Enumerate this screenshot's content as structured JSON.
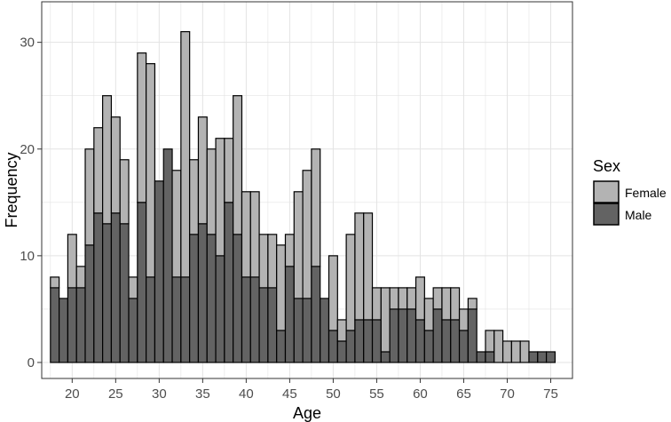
{
  "chart_data": {
    "type": "bar",
    "stacked": true,
    "xlabel": "Age",
    "ylabel": "Frequency",
    "xlim": [
      16.5,
      77.5
    ],
    "ylim": [
      -1.5,
      33.8
    ],
    "x_ticks": [
      20,
      25,
      30,
      35,
      40,
      45,
      50,
      55,
      60,
      65,
      70,
      75
    ],
    "y_ticks": [
      0,
      10,
      20,
      30
    ],
    "grid": true,
    "legend": {
      "title": "Sex",
      "position": "right",
      "entries": [
        {
          "name": "Female",
          "color": "#b3b3b3"
        },
        {
          "name": "Male",
          "color": "#636363"
        }
      ]
    },
    "x": [
      18,
      19,
      20,
      21,
      22,
      23,
      24,
      25,
      26,
      27,
      28,
      29,
      30,
      31,
      32,
      33,
      34,
      35,
      36,
      37,
      38,
      39,
      40,
      41,
      42,
      43,
      44,
      45,
      46,
      47,
      48,
      49,
      50,
      51,
      52,
      53,
      54,
      55,
      56,
      57,
      58,
      59,
      60,
      61,
      62,
      63,
      64,
      65,
      66,
      67,
      68,
      69,
      70,
      71,
      72,
      73,
      74,
      75
    ],
    "series": [
      {
        "name": "Male",
        "values": [
          7,
          6,
          7,
          7,
          11,
          14,
          13,
          14,
          13,
          6,
          15,
          8,
          17,
          20,
          8,
          8,
          12,
          13,
          12,
          10,
          15,
          12,
          8,
          8,
          7,
          7,
          3,
          9,
          6,
          6,
          9,
          6,
          3,
          2,
          3,
          4,
          4,
          4,
          1,
          5,
          5,
          5,
          4,
          3,
          5,
          4,
          4,
          3,
          5,
          1,
          1,
          0,
          0,
          0,
          0,
          1,
          1,
          1
        ]
      },
      {
        "name": "Female",
        "values": [
          1,
          0,
          5,
          2,
          9,
          8,
          12,
          9,
          6,
          2,
          14,
          20,
          0,
          0,
          10,
          23,
          7,
          10,
          8,
          11,
          6,
          13,
          8,
          8,
          5,
          5,
          8,
          3,
          10,
          12,
          11,
          0,
          7,
          2,
          9,
          10,
          10,
          3,
          6,
          2,
          2,
          2,
          4,
          3,
          2,
          3,
          3,
          2,
          1,
          0,
          2,
          3,
          2,
          2,
          2,
          0,
          0,
          0
        ]
      }
    ]
  }
}
